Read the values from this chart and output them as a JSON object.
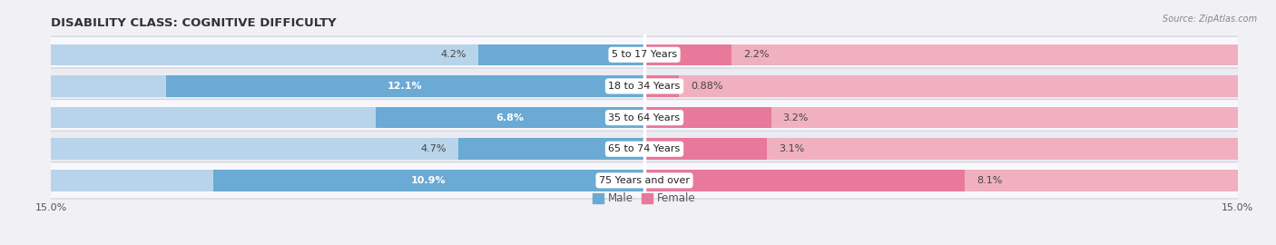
{
  "title": "DISABILITY CLASS: COGNITIVE DIFFICULTY",
  "source": "Source: ZipAtlas.com",
  "categories": [
    "5 to 17 Years",
    "18 to 34 Years",
    "35 to 64 Years",
    "65 to 74 Years",
    "75 Years and over"
  ],
  "male_values": [
    4.2,
    12.1,
    6.8,
    4.7,
    10.9
  ],
  "female_values": [
    2.2,
    0.88,
    3.2,
    3.1,
    8.1
  ],
  "male_labels": [
    "4.2%",
    "12.1%",
    "6.8%",
    "4.7%",
    "10.9%"
  ],
  "female_labels": [
    "2.2%",
    "0.88%",
    "3.2%",
    "3.1%",
    "8.1%"
  ],
  "male_color_dark": "#6aaad4",
  "male_color_light": "#b8d4ea",
  "female_color_dark": "#e8799a",
  "female_color_light": "#f0b0c0",
  "xlim": 15.0,
  "bar_height": 0.68,
  "title_fontsize": 9.5,
  "label_fontsize": 8.0,
  "value_fontsize": 8.0,
  "axis_fontsize": 8.0,
  "legend_fontsize": 8.5,
  "bg_color": "#f0f0f5",
  "row_bg_even": "#f8f8fc",
  "row_bg_odd": "#ebebf2",
  "label_inside_color": "#ffffff",
  "label_outside_color": "#444444"
}
